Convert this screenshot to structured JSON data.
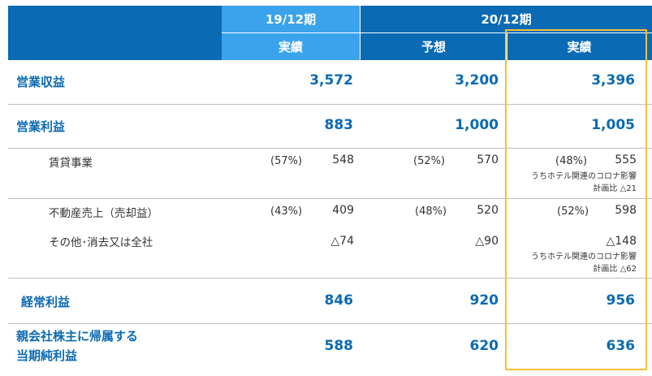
{
  "header": {
    "year_prev": "19/12期",
    "year_curr": "20/12期",
    "col_prev_actual": "実績",
    "col_forecast": "予想",
    "col_curr_actual": "実績"
  },
  "rows": {
    "operating_revenue": {
      "label": "営業収益",
      "prev": "3,572",
      "forecast": "3,200",
      "actual": "3,396"
    },
    "operating_profit": {
      "label": "営業利益",
      "prev": "883",
      "forecast": "1,000",
      "actual": "1,005"
    },
    "leasing": {
      "label": "賃貸事業",
      "prev_pct": "(57%)",
      "prev": "548",
      "forecast_pct": "(52%)",
      "forecast": "570",
      "actual_pct": "(48%)",
      "actual": "555",
      "note1": "うちホテル関連のコロナ影響",
      "note2": "計画比 △21"
    },
    "real_estate_sales": {
      "label": "不動産売上（売却益）",
      "prev_pct": "(43%)",
      "prev": "409",
      "forecast_pct": "(48%)",
      "forecast": "520",
      "actual_pct": "(52%)",
      "actual": "598"
    },
    "other": {
      "label": "その他･消去又は全社",
      "prev": "△74",
      "forecast": "△90",
      "actual": "△148",
      "note1": "うちホテル関連のコロナ影響",
      "note2": "計画比 △62"
    },
    "ordinary_profit": {
      "label": "経常利益",
      "prev": "846",
      "forecast": "920",
      "actual": "956"
    },
    "net_income": {
      "label_line1": "親会社株主に帰属する",
      "label_line2": "当期純利益",
      "prev": "588",
      "forecast": "620",
      "actual": "636"
    }
  },
  "colors": {
    "header_dark": "#0a6ab3",
    "header_light": "#3aa3eb",
    "text_blue": "#0a6ab3",
    "highlight": "#f5c13a"
  }
}
